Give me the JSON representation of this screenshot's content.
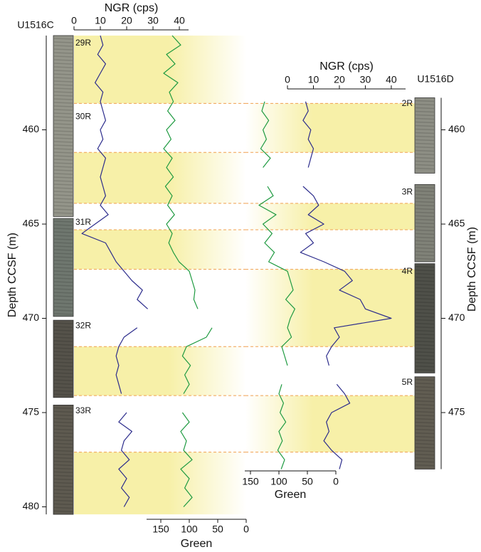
{
  "chart_data": [
    {
      "type": "depth-log",
      "site": "U1516C",
      "ylabel": "Depth CCSF (m)",
      "ylim": [
        455,
        480.4
      ],
      "yticks": [
        460,
        465,
        470,
        475,
        480
      ],
      "xlabel": "NGR (cps)",
      "xlim": [
        0,
        43.5
      ],
      "xticks": [
        0,
        10,
        20,
        30,
        40
      ],
      "x2label": "Green",
      "x2lim": [
        175,
        0
      ],
      "x2ticks": [
        150,
        100,
        50,
        0
      ],
      "band_color": "#f7f0a8",
      "boundary_color": "#f0a050",
      "bands": [
        [
          455,
          458.6
        ],
        [
          461.2,
          463.9
        ],
        [
          465.3,
          467.4
        ],
        [
          471.5,
          474.1
        ],
        [
          477.1,
          480.4
        ]
      ],
      "boundaries": [
        458.6,
        461.2,
        463.9,
        465.3,
        467.4,
        471.5,
        474.1,
        477.1
      ],
      "core_images": [
        {
          "top": 455,
          "bottom": 464.6,
          "color": "#94958a"
        },
        {
          "top": 464.7,
          "bottom": 469.9,
          "color": "#6f776f"
        },
        {
          "top": 470.1,
          "bottom": 474.2,
          "color": "#55524a"
        },
        {
          "top": 474.6,
          "bottom": 480.4,
          "color": "#5e5a50"
        }
      ],
      "core_labels": [
        {
          "label": "29R",
          "depth": 455.3
        },
        {
          "label": "30R",
          "depth": 459.2
        },
        {
          "label": "31R",
          "depth": 464.8
        },
        {
          "label": "32R",
          "depth": 470.3
        },
        {
          "label": "33R",
          "depth": 474.8
        }
      ],
      "depth": [
        455,
        455.5,
        456,
        456.5,
        457,
        457.5,
        458,
        458.5,
        459,
        459.5,
        460,
        460.5,
        461,
        461.5,
        462,
        462.5,
        463,
        463.5,
        464,
        464.5,
        465,
        465.5,
        466,
        466.5,
        467,
        467.5,
        468,
        468.5,
        469,
        469.5,
        470,
        470.5,
        471,
        471.5,
        472,
        472.5,
        473,
        473.5,
        474,
        474.5,
        475,
        475.5,
        476,
        476.5,
        477,
        477.5,
        478,
        478.5,
        479,
        479.5,
        480
      ],
      "series": [
        {
          "axis": "x",
          "color": "#2c2c8c",
          "values": [
            10,
            11,
            9,
            12,
            10,
            8,
            11,
            10,
            11,
            12,
            10,
            11,
            9,
            12,
            11,
            10,
            11,
            12,
            10,
            13,
            8,
            3,
            12,
            14,
            16,
            19,
            22,
            26,
            24,
            28,
            null,
            24,
            19,
            17,
            16,
            17,
            16,
            17,
            18,
            null,
            20,
            17,
            22,
            19,
            18,
            21,
            17,
            20,
            18,
            21,
            19
          ]
        },
        {
          "axis": "x2",
          "color": "#1e9a40",
          "values": [
            130,
            115,
            140,
            125,
            145,
            120,
            135,
            128,
            138,
            125,
            140,
            132,
            145,
            130,
            140,
            128,
            142,
            130,
            138,
            126,
            140,
            130,
            136,
            128,
            118,
            100,
            95,
            90,
            92,
            85,
            null,
            60,
            70,
            105,
            112,
            98,
            108,
            100,
            110,
            null,
            112,
            100,
            115,
            105,
            110,
            95,
            115,
            100,
            108,
            95,
            110
          ]
        }
      ]
    },
    {
      "type": "depth-log",
      "site": "U1516D",
      "ylabel": "Depth CCSF (m)",
      "ylim": [
        458.3,
        478
      ],
      "yticks": [
        460,
        465,
        470,
        475
      ],
      "xlabel": "NGR (cps)",
      "xlim": [
        0,
        45.5
      ],
      "xticks": [
        0,
        10,
        20,
        30,
        40
      ],
      "x2label": "Green",
      "x2lim": [
        160,
        0
      ],
      "x2ticks": [
        150,
        100,
        50,
        0
      ],
      "band_color": "#f7f0a8",
      "boundary_color": "#f0a050",
      "bands": [
        [
          458.6,
          461.2
        ],
        [
          463.9,
          465.3
        ],
        [
          467.4,
          471.5
        ],
        [
          474.1,
          477.1
        ]
      ],
      "boundaries": [
        458.6,
        461.2,
        463.9,
        465.3,
        467.4,
        471.5,
        474.1,
        477.1
      ],
      "core_images": [
        {
          "top": 458.3,
          "bottom": 462.3,
          "color": "#8d8e84"
        },
        {
          "top": 462.9,
          "bottom": 467.0,
          "color": "#808278"
        },
        {
          "top": 467.1,
          "bottom": 472.9,
          "color": "#4f5049"
        },
        {
          "top": 473.1,
          "bottom": 478,
          "color": "#615d52"
        }
      ],
      "core_labels": [
        {
          "label": "2R",
          "depth": 458.5
        },
        {
          "label": "3R",
          "depth": 463.2
        },
        {
          "label": "4R",
          "depth": 467.4
        },
        {
          "label": "5R",
          "depth": 473.3
        }
      ],
      "depth": [
        458.5,
        459,
        459.5,
        460,
        460.5,
        461,
        461.5,
        462,
        462.5,
        463,
        463.5,
        464,
        464.5,
        465,
        465.5,
        466,
        466.5,
        467,
        467.5,
        468,
        468.5,
        469,
        469.5,
        470,
        470.5,
        471,
        471.5,
        472,
        472.5,
        473,
        473.5,
        474,
        474.5,
        475,
        475.5,
        476,
        476.5,
        477,
        477.5,
        478
      ],
      "series": [
        {
          "axis": "x",
          "color": "#2c2c8c",
          "values": [
            7,
            8,
            6,
            9,
            8,
            10,
            9,
            8,
            null,
            6,
            10,
            12,
            8,
            14,
            7,
            10,
            5,
            14,
            22,
            25,
            20,
            28,
            30,
            40,
            18,
            20,
            17,
            15,
            16,
            null,
            19,
            22,
            24,
            17,
            15,
            16,
            14,
            17,
            21,
            20
          ]
        },
        {
          "axis": "x2",
          "color": "#1e9a40",
          "values": [
            125,
            130,
            118,
            128,
            122,
            132,
            115,
            128,
            null,
            120,
            110,
            135,
            105,
            128,
            112,
            125,
            108,
            118,
            85,
            80,
            75,
            88,
            72,
            80,
            85,
            78,
            95,
            90,
            85,
            null,
            95,
            100,
            92,
            98,
            88,
            100,
            94,
            102,
            90,
            96
          ]
        }
      ]
    }
  ]
}
